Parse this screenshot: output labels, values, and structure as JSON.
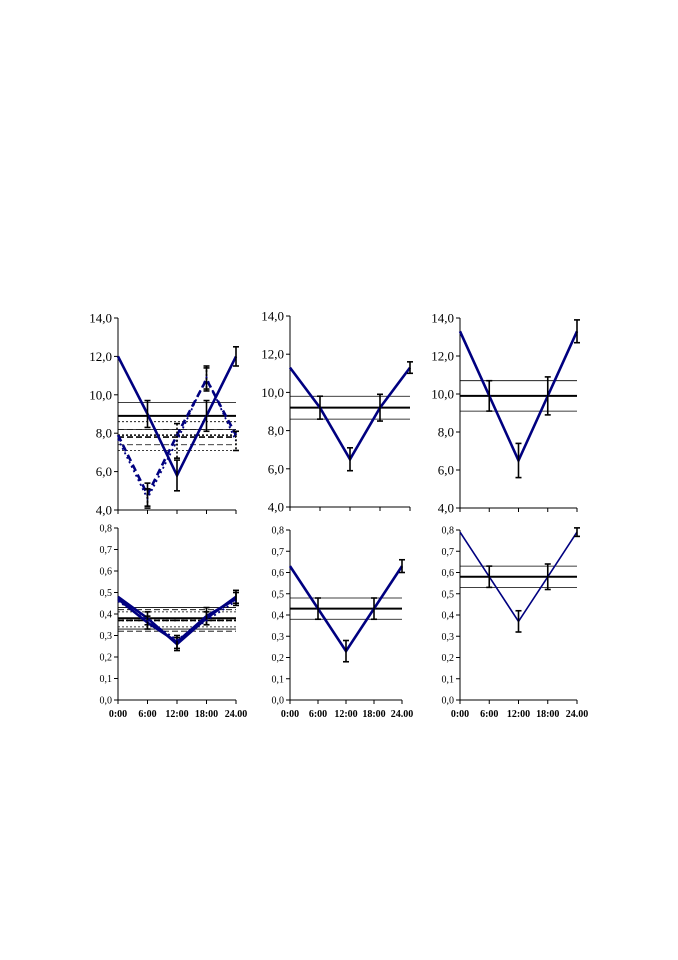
{
  "colors": {
    "series": "#000080",
    "mesor": "#000000",
    "error_bar": "#000000",
    "axis": "#000000"
  },
  "chart_data": [
    {
      "type": "line",
      "x": [
        "0:00",
        "6:00",
        "12:00",
        "18:00",
        "24.00"
      ],
      "ylim": [
        4,
        14
      ],
      "yticks": [
        "4,0",
        "6,0",
        "8,0",
        "10,0",
        "12,0",
        "14,0"
      ],
      "xticks": [],
      "series": [
        {
          "style": "solid",
          "values": [
            12.0,
            9.0,
            5.8,
            8.9,
            12.0
          ],
          "errors": [
            0,
            0.7,
            0.8,
            0.8,
            0.5
          ]
        },
        {
          "style": "dashed",
          "values": [
            7.9,
            4.8,
            7.9,
            10.8,
            7.9
          ],
          "errors": [
            0,
            0.6,
            0,
            0.6,
            0
          ]
        },
        {
          "style": "dotted",
          "values": [
            7.7,
            4.6,
            7.6,
            10.9,
            7.6
          ],
          "errors": [
            0,
            0.5,
            0.9,
            0.6,
            0.5
          ]
        }
      ],
      "mesor_bands": [
        {
          "style": "solid",
          "mesor": 8.9,
          "low": 8.2,
          "high": 9.6
        },
        {
          "style": "dashed",
          "mesor": 7.8,
          "low": 7.4,
          "high": 8.2
        },
        {
          "style": "dotted",
          "mesor": 7.9,
          "low": 7.1,
          "high": 8.6
        }
      ]
    },
    {
      "type": "line",
      "x": [
        "0:00",
        "6:00",
        "12:00",
        "18:00",
        "24.00"
      ],
      "ylim": [
        4,
        14
      ],
      "yticks": [
        "4,0",
        "6,0",
        "8,0",
        "10,0",
        "12,0",
        "14,0"
      ],
      "xticks": [],
      "series": [
        {
          "style": "solid",
          "values": [
            11.3,
            9.2,
            6.5,
            9.2,
            11.3
          ],
          "errors": [
            0,
            0.6,
            0.6,
            0.7,
            0.3
          ]
        }
      ],
      "mesor_bands": [
        {
          "style": "solid",
          "mesor": 9.2,
          "low": 8.6,
          "high": 9.8
        }
      ]
    },
    {
      "type": "line",
      "x": [
        "0:00",
        "6:00",
        "12:00",
        "18:00",
        "24.00"
      ],
      "ylim": [
        4,
        14
      ],
      "yticks": [
        "4,0",
        "6,0",
        "8,0",
        "10,0",
        "12,0",
        "14,0"
      ],
      "xticks": [],
      "series": [
        {
          "style": "solid",
          "values": [
            13.3,
            9.9,
            6.5,
            9.9,
            13.3
          ],
          "errors": [
            0,
            0.8,
            0.9,
            1.0,
            0.6
          ]
        }
      ],
      "mesor_bands": [
        {
          "style": "solid",
          "mesor": 9.9,
          "low": 9.1,
          "high": 10.7
        }
      ]
    },
    {
      "type": "line",
      "x": [
        "0:00",
        "6:00",
        "12:00",
        "18:00",
        "24.00"
      ],
      "ylim": [
        0,
        0.8
      ],
      "yticks": [
        "0,0",
        "0,1",
        "0,2",
        "0,3",
        "0,4",
        "0,5",
        "0,6",
        "0,7",
        "0,8"
      ],
      "xticks": [
        "0:00",
        "6:00",
        "12:00",
        "18:00",
        "24.00"
      ],
      "series": [
        {
          "style": "solid",
          "values": [
            0.48,
            0.38,
            0.26,
            0.38,
            0.48
          ],
          "errors": [
            0,
            0.03,
            0.03,
            0.03,
            0.03
          ]
        },
        {
          "style": "solid",
          "values": [
            0.47,
            0.36,
            0.27,
            0.39,
            0.47
          ],
          "errors": [
            0,
            0.03,
            0.03,
            0.04,
            0.03
          ]
        },
        {
          "style": "dotted",
          "values": [
            0.46,
            0.37,
            0.28,
            0.37,
            0.46
          ],
          "errors": [
            0,
            0,
            0,
            0,
            0
          ]
        }
      ],
      "mesor_bands": [
        {
          "style": "solid",
          "mesor": 0.38,
          "low": 0.33,
          "high": 0.43
        },
        {
          "style": "dashed",
          "mesor": 0.37,
          "low": 0.32,
          "high": 0.42
        },
        {
          "style": "dotted",
          "mesor": 0.37,
          "low": 0.34,
          "high": 0.41
        }
      ]
    },
    {
      "type": "line",
      "x": [
        "0:00",
        "6:00",
        "12:00",
        "18:00",
        "24.00"
      ],
      "ylim": [
        0,
        0.8
      ],
      "yticks": [
        "0,0",
        "0,1",
        "0,2",
        "0,3",
        "0,4",
        "0,5",
        "0,6",
        "0,7",
        "0,8"
      ],
      "xticks": [
        "0:00",
        "6:00",
        "12:00",
        "18:00",
        "24.00"
      ],
      "series": [
        {
          "style": "solid",
          "values": [
            0.63,
            0.43,
            0.23,
            0.43,
            0.63
          ],
          "errors": [
            0,
            0.05,
            0.05,
            0.05,
            0.03
          ]
        }
      ],
      "mesor_bands": [
        {
          "style": "solid",
          "mesor": 0.43,
          "low": 0.38,
          "high": 0.48
        }
      ]
    },
    {
      "type": "line",
      "x": [
        "0:00",
        "6:00",
        "12:00",
        "18:00",
        "24.00"
      ],
      "ylim": [
        0,
        0.8
      ],
      "yticks": [
        "0,0",
        "0,1",
        "0,2",
        "0,3",
        "0,4",
        "0,5",
        "0,6",
        "0,7",
        "0,8"
      ],
      "xticks": [
        "0:00",
        "6:00",
        "12:00",
        "18:00",
        "24.00"
      ],
      "series": [
        {
          "style": "solid",
          "values": [
            0.79,
            0.58,
            0.37,
            0.58,
            0.79
          ],
          "errors": [
            0,
            0.05,
            0.05,
            0.06,
            0.02
          ]
        }
      ],
      "mesor_bands": [
        {
          "style": "solid",
          "mesor": 0.58,
          "low": 0.53,
          "high": 0.63
        }
      ]
    }
  ]
}
